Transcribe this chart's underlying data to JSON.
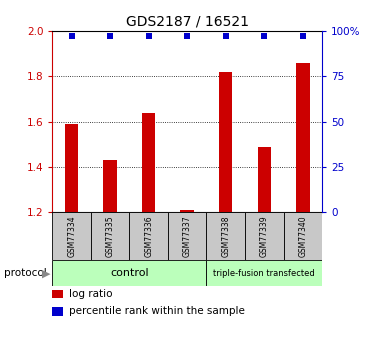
{
  "title": "GDS2187 / 16521",
  "samples": [
    "GSM77334",
    "GSM77335",
    "GSM77336",
    "GSM77337",
    "GSM77338",
    "GSM77339",
    "GSM77340"
  ],
  "log_ratio": [
    1.59,
    1.43,
    1.64,
    1.21,
    1.82,
    1.49,
    1.86
  ],
  "percentile_rank": [
    100,
    100,
    100,
    100,
    100,
    100,
    100
  ],
  "ylim_left": [
    1.2,
    2.0
  ],
  "ylim_right": [
    0,
    100
  ],
  "left_ticks": [
    1.2,
    1.4,
    1.6,
    1.8,
    2.0
  ],
  "right_ticks": [
    0,
    25,
    50,
    75,
    100
  ],
  "right_tick_labels": [
    "0",
    "25",
    "50",
    "75",
    "100%"
  ],
  "left_tick_color": "#cc0000",
  "right_tick_color": "#0000cc",
  "bar_color": "#cc0000",
  "dot_color": "#0000cc",
  "grid_color": "#000000",
  "sample_box_color": "#c8c8c8",
  "control_label": "control",
  "transfected_label": "triple-fusion transfected",
  "protocol_label": "protocol",
  "legend_red_label": "log ratio",
  "legend_blue_label": "percentile rank within the sample",
  "control_bg": "#bbffbb",
  "transfected_bg": "#bbffbb",
  "n_control": 4,
  "n_transfected": 3,
  "bar_width": 0.35,
  "dot_marker": "s",
  "dot_size": 4
}
